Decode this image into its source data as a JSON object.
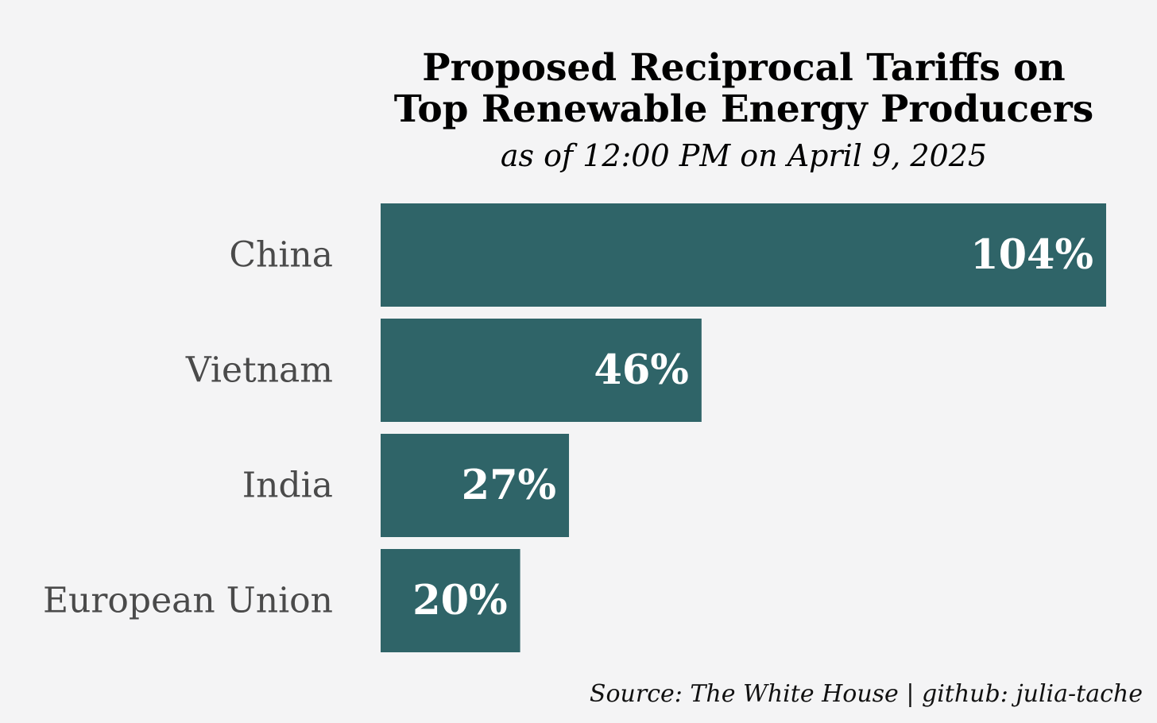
{
  "chart_data": {
    "type": "bar",
    "orientation": "horizontal",
    "title_lines": [
      "Proposed Reciprocal Tariffs on",
      "Top Renewable Energy Producers"
    ],
    "subtitle": "as of 12:00 PM on April 9, 2025",
    "categories": [
      "China",
      "Vietnam",
      "India",
      "European Union"
    ],
    "values": [
      104,
      46,
      27,
      20
    ],
    "value_labels": [
      "104%",
      "46%",
      "27%",
      "20%"
    ],
    "unit": "%",
    "xlim": [
      0,
      104
    ],
    "xlabel": "",
    "ylabel": "",
    "grid": false,
    "legend": "none",
    "bar_color": "#2f6468",
    "source": "Source: The White House | github: julia-tache"
  }
}
